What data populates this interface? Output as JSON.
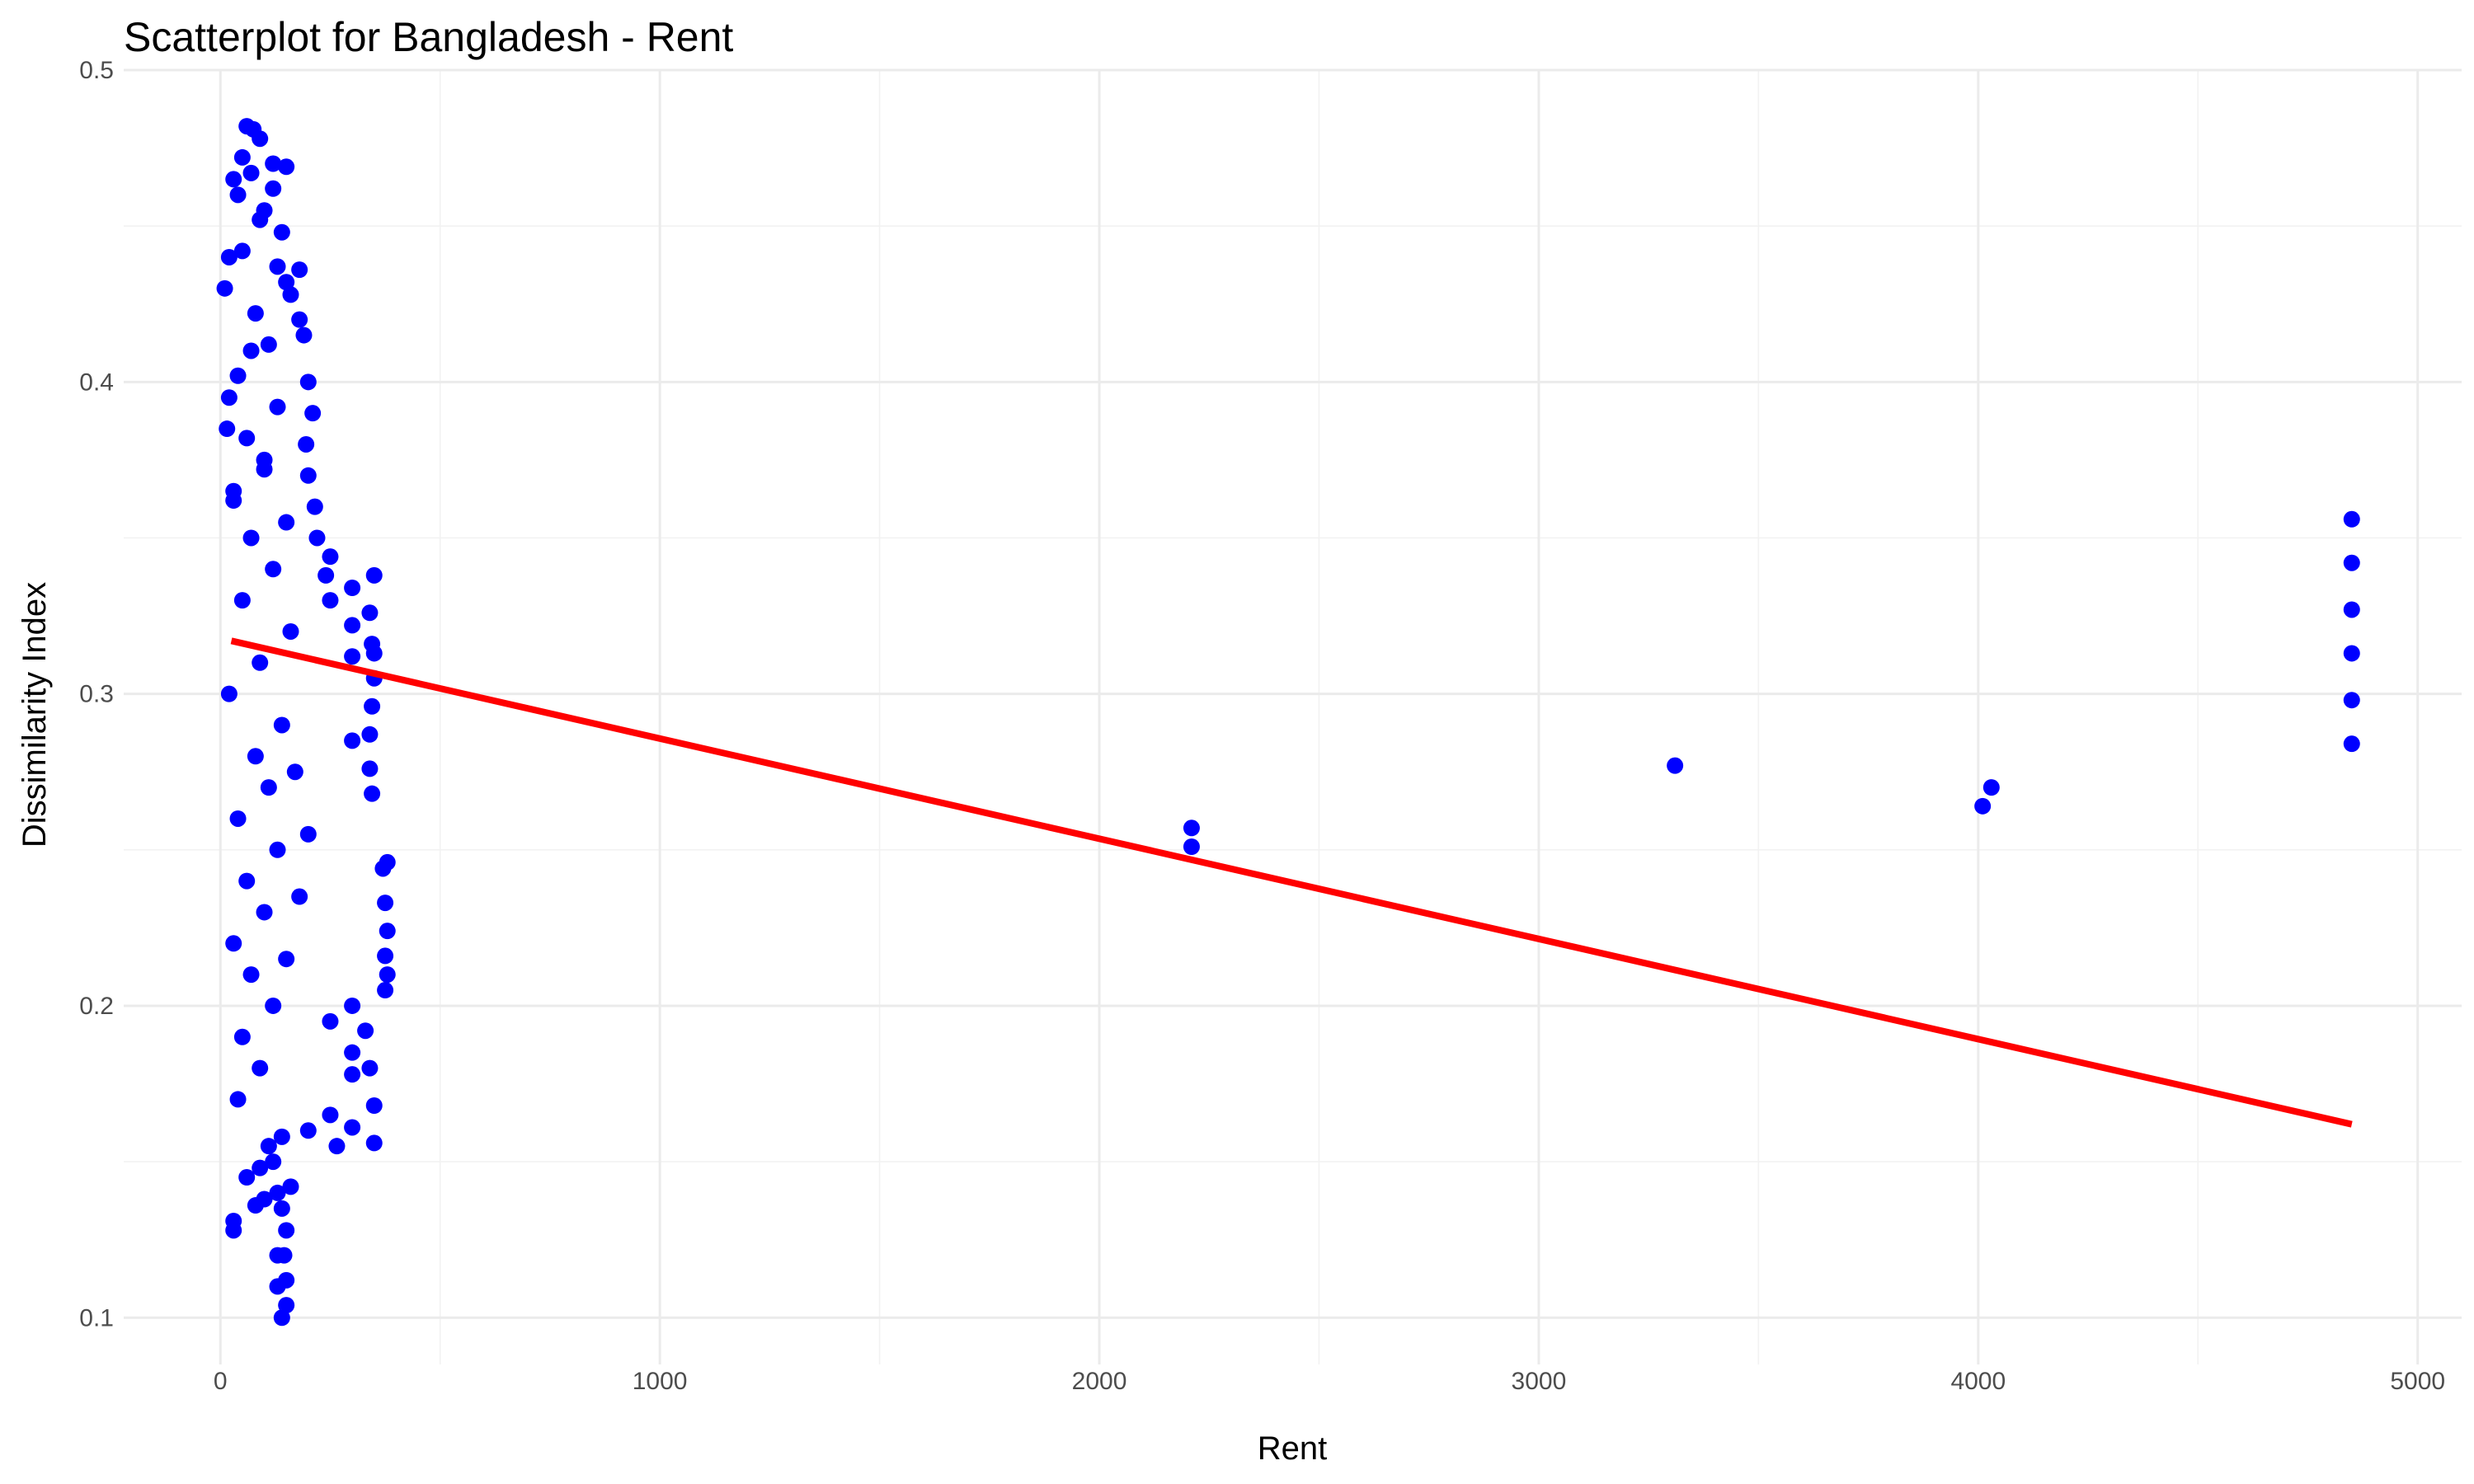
{
  "chart_data": {
    "type": "scatter",
    "title": "Scatterplot for Bangladesh - Rent",
    "xlabel": "Rent",
    "ylabel": "Dissimilarity Index",
    "xlim": [
      -220,
      5100
    ],
    "ylim": [
      0.085,
      0.5
    ],
    "x_ticks": [
      0,
      1000,
      2000,
      3000,
      4000,
      5000
    ],
    "x_tick_labels": [
      "0",
      "1000",
      "2000",
      "3000",
      "4000",
      "5000"
    ],
    "y_ticks": [
      0.1,
      0.2,
      0.3,
      0.4,
      0.5
    ],
    "y_tick_labels": [
      "0.1",
      "0.2",
      "0.3",
      "0.4",
      "0.5"
    ],
    "grid": true,
    "point_color": "#0000ff",
    "line_color": "#ff0000",
    "series": [
      {
        "type": "scatter",
        "points": [
          [
            60,
            0.482
          ],
          [
            75,
            0.481
          ],
          [
            90,
            0.478
          ],
          [
            50,
            0.472
          ],
          [
            120,
            0.47
          ],
          [
            150,
            0.469
          ],
          [
            30,
            0.465
          ],
          [
            40,
            0.46
          ],
          [
            100,
            0.455
          ],
          [
            140,
            0.448
          ],
          [
            20,
            0.44
          ],
          [
            130,
            0.437
          ],
          [
            180,
            0.436
          ],
          [
            10,
            0.43
          ],
          [
            160,
            0.428
          ],
          [
            180,
            0.42
          ],
          [
            190,
            0.415
          ],
          [
            70,
            0.41
          ],
          [
            200,
            0.4
          ],
          [
            20,
            0.395
          ],
          [
            210,
            0.39
          ],
          [
            15,
            0.385
          ],
          [
            195,
            0.38
          ],
          [
            100,
            0.375
          ],
          [
            200,
            0.37
          ],
          [
            30,
            0.365
          ],
          [
            215,
            0.36
          ],
          [
            220,
            0.35
          ],
          [
            250,
            0.344
          ],
          [
            240,
            0.338
          ],
          [
            350,
            0.338
          ],
          [
            300,
            0.334
          ],
          [
            250,
            0.33
          ],
          [
            340,
            0.326
          ],
          [
            300,
            0.322
          ],
          [
            345,
            0.316
          ],
          [
            350,
            0.313
          ],
          [
            300,
            0.312
          ],
          [
            350,
            0.305
          ],
          [
            345,
            0.296
          ],
          [
            340,
            0.287
          ],
          [
            300,
            0.285
          ],
          [
            340,
            0.276
          ],
          [
            345,
            0.268
          ],
          [
            380,
            0.246
          ],
          [
            370,
            0.244
          ],
          [
            375,
            0.233
          ],
          [
            380,
            0.224
          ],
          [
            375,
            0.216
          ],
          [
            380,
            0.21
          ],
          [
            375,
            0.205
          ],
          [
            300,
            0.2
          ],
          [
            250,
            0.195
          ],
          [
            330,
            0.192
          ],
          [
            300,
            0.185
          ],
          [
            340,
            0.18
          ],
          [
            300,
            0.178
          ],
          [
            350,
            0.168
          ],
          [
            250,
            0.165
          ],
          [
            300,
            0.161
          ],
          [
            350,
            0.156
          ],
          [
            265,
            0.155
          ],
          [
            200,
            0.16
          ],
          [
            140,
            0.158
          ],
          [
            110,
            0.155
          ],
          [
            120,
            0.15
          ],
          [
            90,
            0.148
          ],
          [
            160,
            0.142
          ],
          [
            130,
            0.14
          ],
          [
            100,
            0.138
          ],
          [
            80,
            0.136
          ],
          [
            30,
            0.131
          ],
          [
            30,
            0.128
          ],
          [
            150,
            0.128
          ],
          [
            140,
            0.135
          ],
          [
            130,
            0.12
          ],
          [
            145,
            0.12
          ],
          [
            150,
            0.112
          ],
          [
            130,
            0.11
          ],
          [
            150,
            0.104
          ],
          [
            140,
            0.1
          ],
          [
            60,
            0.145
          ],
          [
            40,
            0.17
          ],
          [
            90,
            0.18
          ],
          [
            50,
            0.19
          ],
          [
            120,
            0.2
          ],
          [
            70,
            0.21
          ],
          [
            150,
            0.215
          ],
          [
            30,
            0.22
          ],
          [
            100,
            0.23
          ],
          [
            180,
            0.235
          ],
          [
            60,
            0.24
          ],
          [
            130,
            0.25
          ],
          [
            200,
            0.255
          ],
          [
            40,
            0.26
          ],
          [
            110,
            0.27
          ],
          [
            170,
            0.275
          ],
          [
            80,
            0.28
          ],
          [
            140,
            0.29
          ],
          [
            20,
            0.3
          ],
          [
            90,
            0.31
          ],
          [
            160,
            0.32
          ],
          [
            50,
            0.33
          ],
          [
            120,
            0.34
          ],
          [
            70,
            0.35
          ],
          [
            150,
            0.355
          ],
          [
            30,
            0.362
          ],
          [
            100,
            0.372
          ],
          [
            60,
            0.382
          ],
          [
            130,
            0.392
          ],
          [
            40,
            0.402
          ],
          [
            110,
            0.412
          ],
          [
            80,
            0.422
          ],
          [
            150,
            0.432
          ],
          [
            50,
            0.442
          ],
          [
            90,
            0.452
          ],
          [
            120,
            0.462
          ],
          [
            70,
            0.467
          ],
          [
            2210,
            0.257
          ],
          [
            2210,
            0.251
          ],
          [
            3310,
            0.277
          ],
          [
            4010,
            0.264
          ],
          [
            4030,
            0.27
          ],
          [
            4850,
            0.356
          ],
          [
            4850,
            0.342
          ],
          [
            4850,
            0.327
          ],
          [
            4850,
            0.313
          ],
          [
            4850,
            0.298
          ],
          [
            4850,
            0.284
          ]
        ]
      },
      {
        "type": "line",
        "points": [
          [
            25,
            0.317
          ],
          [
            4850,
            0.162
          ]
        ]
      }
    ]
  }
}
